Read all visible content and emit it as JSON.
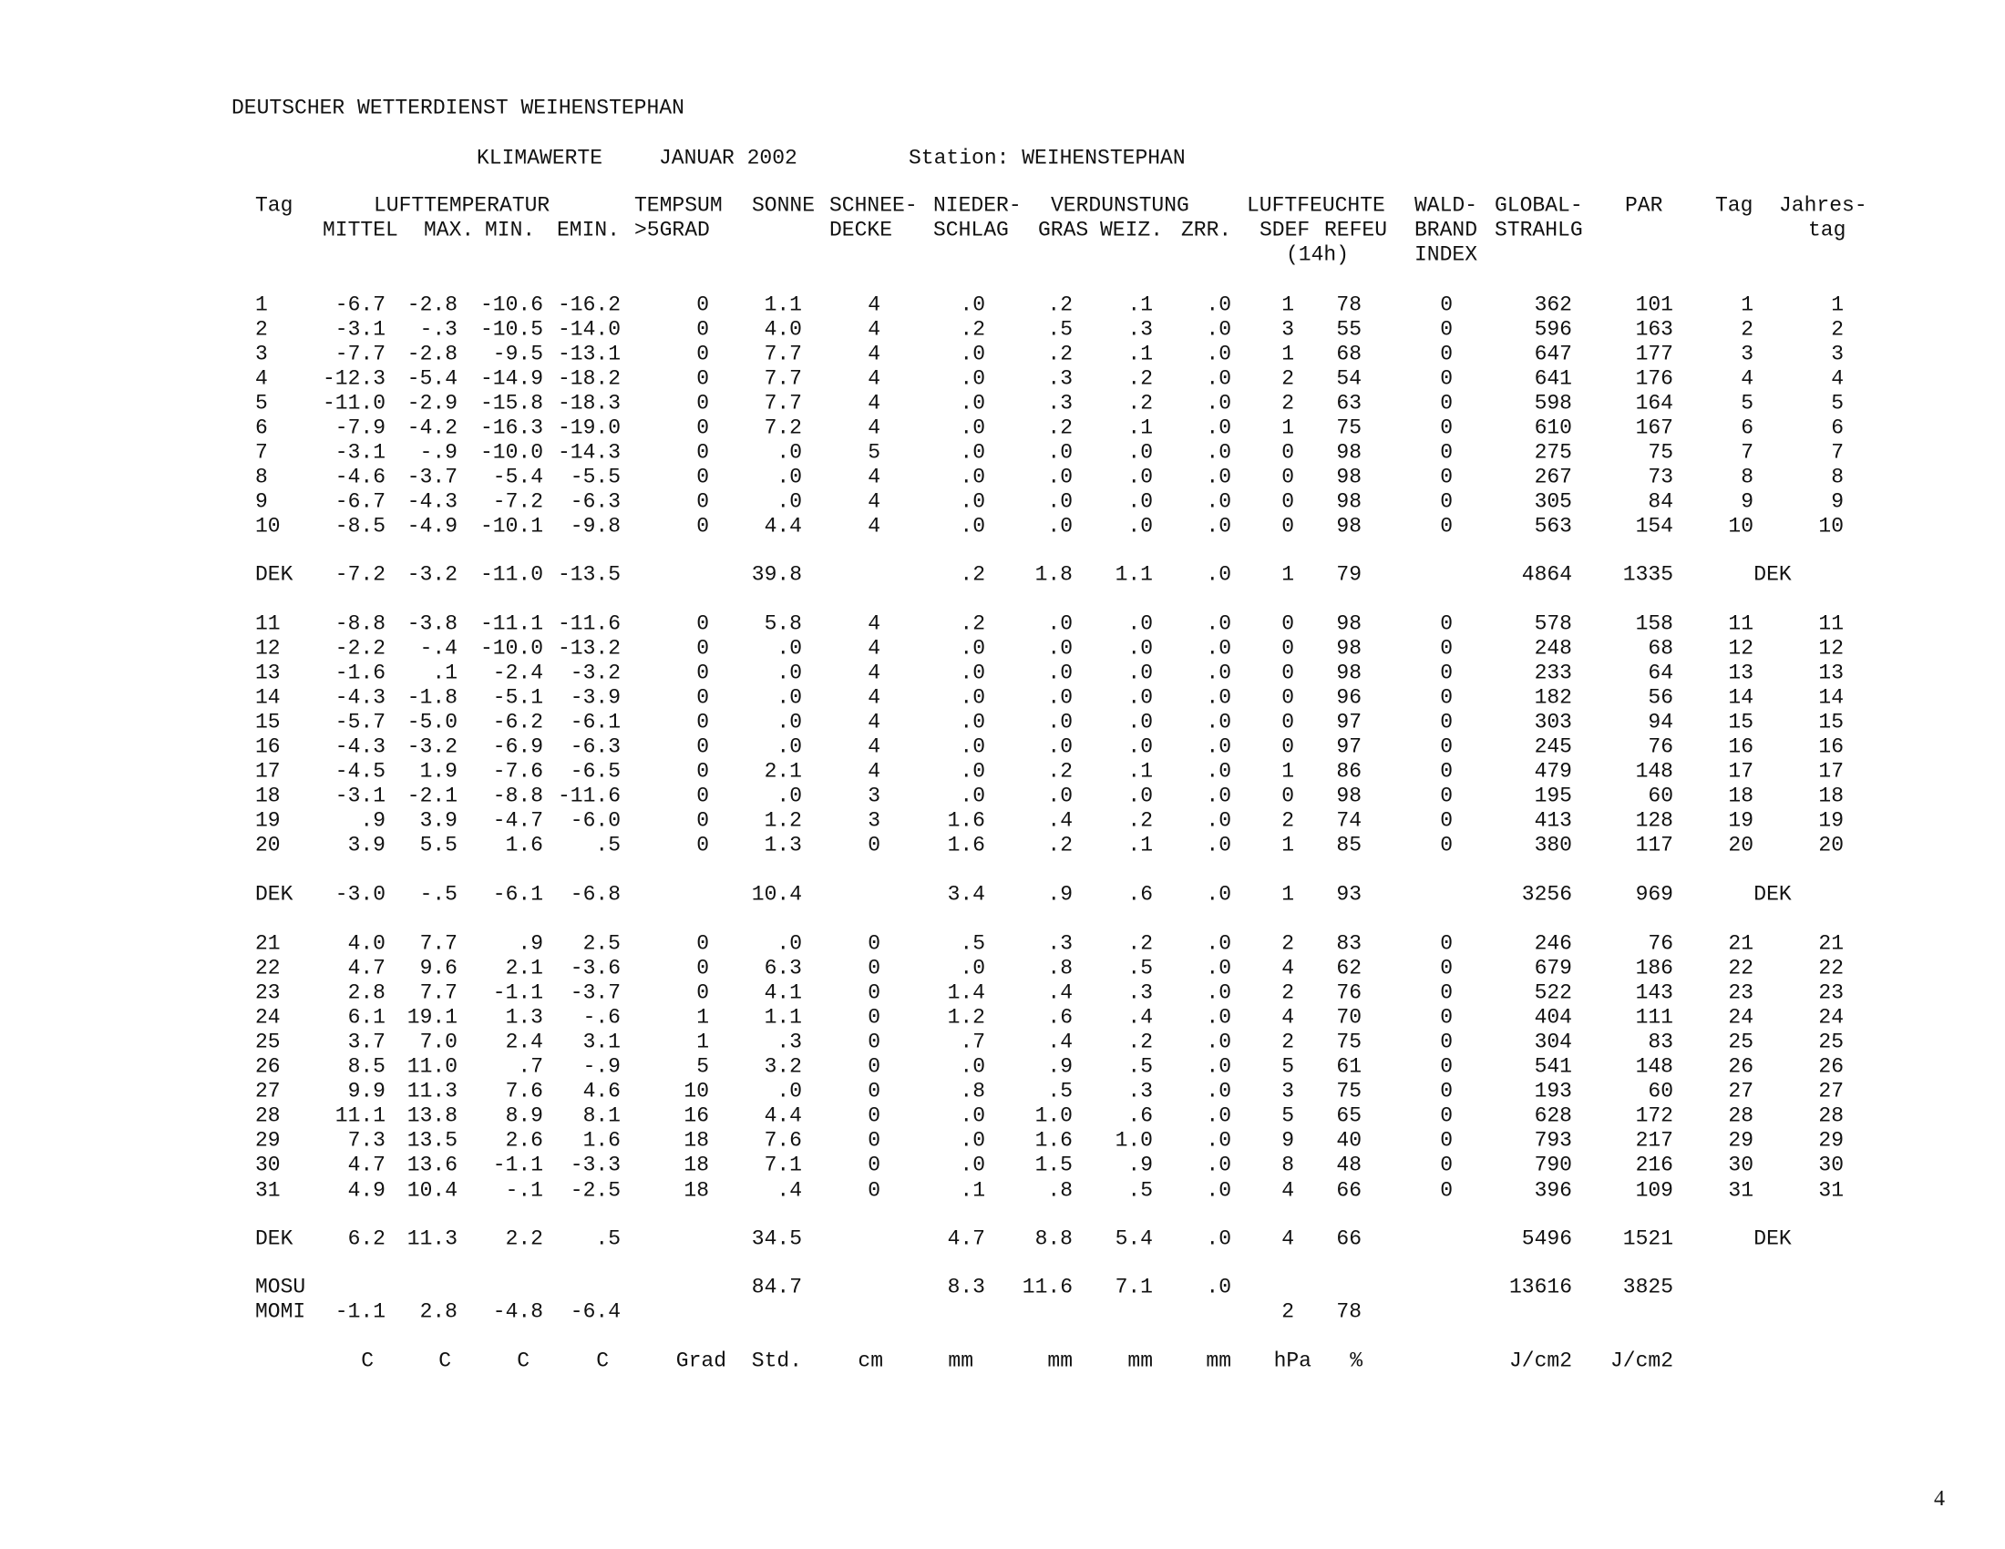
{
  "header": {
    "org": "DEUTSCHER WETTERDIENST WEIHENSTEPHAN",
    "subtitle": "KLIMAWERTE",
    "month": "JANUAR 2002",
    "station": "Station: WEIHENSTEPHAN"
  },
  "column_headers": {
    "line1": [
      "Tag",
      "LUFTTEMPERATUR",
      "TEMPSUM",
      "SONNE",
      "SCHNEE-",
      "NIEDER-",
      "VERDUNSTUNG",
      "LUFTFEUCHTE",
      "WALD-",
      "GLOBAL-",
      "PAR",
      "Tag",
      "Jahres-"
    ],
    "line2": [
      "MITTEL",
      "MAX.",
      "MIN.",
      "EMIN.",
      ">5GRAD",
      "DECKE",
      "SCHLAG",
      "GRAS",
      "WEIZ.",
      "ZRR.",
      "SDEF",
      "REFEU",
      "BRAND",
      "STRAHLG",
      "tag"
    ],
    "line3": [
      "(14h)",
      "INDEX"
    ]
  },
  "blocks": [
    {
      "rows": [
        [
          "1",
          "-6.7",
          "-2.8",
          "-10.6",
          "-16.2",
          "0",
          "1.1",
          "4",
          ".0",
          ".2",
          ".1",
          ".0",
          "1",
          "78",
          "0",
          "362",
          "101",
          "1",
          "1"
        ],
        [
          "2",
          "-3.1",
          "-.3",
          "-10.5",
          "-14.0",
          "0",
          "4.0",
          "4",
          ".2",
          ".5",
          ".3",
          ".0",
          "3",
          "55",
          "0",
          "596",
          "163",
          "2",
          "2"
        ],
        [
          "3",
          "-7.7",
          "-2.8",
          "-9.5",
          "-13.1",
          "0",
          "7.7",
          "4",
          ".0",
          ".2",
          ".1",
          ".0",
          "1",
          "68",
          "0",
          "647",
          "177",
          "3",
          "3"
        ],
        [
          "4",
          "-12.3",
          "-5.4",
          "-14.9",
          "-18.2",
          "0",
          "7.7",
          "4",
          ".0",
          ".3",
          ".2",
          ".0",
          "2",
          "54",
          "0",
          "641",
          "176",
          "4",
          "4"
        ],
        [
          "5",
          "-11.0",
          "-2.9",
          "-15.8",
          "-18.3",
          "0",
          "7.7",
          "4",
          ".0",
          ".3",
          ".2",
          ".0",
          "2",
          "63",
          "0",
          "598",
          "164",
          "5",
          "5"
        ],
        [
          "6",
          "-7.9",
          "-4.2",
          "-16.3",
          "-19.0",
          "0",
          "7.2",
          "4",
          ".0",
          ".2",
          ".1",
          ".0",
          "1",
          "75",
          "0",
          "610",
          "167",
          "6",
          "6"
        ],
        [
          "7",
          "-3.1",
          "-.9",
          "-10.0",
          "-14.3",
          "0",
          ".0",
          "5",
          ".0",
          ".0",
          ".0",
          ".0",
          "0",
          "98",
          "0",
          "275",
          "75",
          "7",
          "7"
        ],
        [
          "8",
          "-4.6",
          "-3.7",
          "-5.4",
          "-5.5",
          "0",
          ".0",
          "4",
          ".0",
          ".0",
          ".0",
          ".0",
          "0",
          "98",
          "0",
          "267",
          "73",
          "8",
          "8"
        ],
        [
          "9",
          "-6.7",
          "-4.3",
          "-7.2",
          "-6.3",
          "0",
          ".0",
          "4",
          ".0",
          ".0",
          ".0",
          ".0",
          "0",
          "98",
          "0",
          "305",
          "84",
          "9",
          "9"
        ],
        [
          "10",
          "-8.5",
          "-4.9",
          "-10.1",
          "-9.8",
          "0",
          "4.4",
          "4",
          ".0",
          ".0",
          ".0",
          ".0",
          "0",
          "98",
          "0",
          "563",
          "154",
          "10",
          "10"
        ]
      ],
      "summary": [
        "DEK",
        "-7.2",
        "-3.2",
        "-11.0",
        "-13.5",
        "",
        "39.8",
        "",
        ".2",
        "1.8",
        "1.1",
        ".0",
        "1",
        "79",
        "",
        "4864",
        "1335",
        "DEK",
        ""
      ]
    },
    {
      "rows": [
        [
          "11",
          "-8.8",
          "-3.8",
          "-11.1",
          "-11.6",
          "0",
          "5.8",
          "4",
          ".2",
          ".0",
          ".0",
          ".0",
          "0",
          "98",
          "0",
          "578",
          "158",
          "11",
          "11"
        ],
        [
          "12",
          "-2.2",
          "-.4",
          "-10.0",
          "-13.2",
          "0",
          ".0",
          "4",
          ".0",
          ".0",
          ".0",
          ".0",
          "0",
          "98",
          "0",
          "248",
          "68",
          "12",
          "12"
        ],
        [
          "13",
          "-1.6",
          ".1",
          "-2.4",
          "-3.2",
          "0",
          ".0",
          "4",
          ".0",
          ".0",
          ".0",
          ".0",
          "0",
          "98",
          "0",
          "233",
          "64",
          "13",
          "13"
        ],
        [
          "14",
          "-4.3",
          "-1.8",
          "-5.1",
          "-3.9",
          "0",
          ".0",
          "4",
          ".0",
          ".0",
          ".0",
          ".0",
          "0",
          "96",
          "0",
          "182",
          "56",
          "14",
          "14"
        ],
        [
          "15",
          "-5.7",
          "-5.0",
          "-6.2",
          "-6.1",
          "0",
          ".0",
          "4",
          ".0",
          ".0",
          ".0",
          ".0",
          "0",
          "97",
          "0",
          "303",
          "94",
          "15",
          "15"
        ],
        [
          "16",
          "-4.3",
          "-3.2",
          "-6.9",
          "-6.3",
          "0",
          ".0",
          "4",
          ".0",
          ".0",
          ".0",
          ".0",
          "0",
          "97",
          "0",
          "245",
          "76",
          "16",
          "16"
        ],
        [
          "17",
          "-4.5",
          "1.9",
          "-7.6",
          "-6.5",
          "0",
          "2.1",
          "4",
          ".0",
          ".2",
          ".1",
          ".0",
          "1",
          "86",
          "0",
          "479",
          "148",
          "17",
          "17"
        ],
        [
          "18",
          "-3.1",
          "-2.1",
          "-8.8",
          "-11.6",
          "0",
          ".0",
          "3",
          ".0",
          ".0",
          ".0",
          ".0",
          "0",
          "98",
          "0",
          "195",
          "60",
          "18",
          "18"
        ],
        [
          "19",
          ".9",
          "3.9",
          "-4.7",
          "-6.0",
          "0",
          "1.2",
          "3",
          "1.6",
          ".4",
          ".2",
          ".0",
          "2",
          "74",
          "0",
          "413",
          "128",
          "19",
          "19"
        ],
        [
          "20",
          "3.9",
          "5.5",
          "1.6",
          ".5",
          "0",
          "1.3",
          "0",
          "1.6",
          ".2",
          ".1",
          ".0",
          "1",
          "85",
          "0",
          "380",
          "117",
          "20",
          "20"
        ]
      ],
      "summary": [
        "DEK",
        "-3.0",
        "-.5",
        "-6.1",
        "-6.8",
        "",
        "10.4",
        "",
        "3.4",
        ".9",
        ".6",
        ".0",
        "1",
        "93",
        "",
        "3256",
        "969",
        "DEK",
        ""
      ]
    },
    {
      "rows": [
        [
          "21",
          "4.0",
          "7.7",
          ".9",
          "2.5",
          "0",
          ".0",
          "0",
          ".5",
          ".3",
          ".2",
          ".0",
          "2",
          "83",
          "0",
          "246",
          "76",
          "21",
          "21"
        ],
        [
          "22",
          "4.7",
          "9.6",
          "2.1",
          "-3.6",
          "0",
          "6.3",
          "0",
          ".0",
          ".8",
          ".5",
          ".0",
          "4",
          "62",
          "0",
          "679",
          "186",
          "22",
          "22"
        ],
        [
          "23",
          "2.8",
          "7.7",
          "-1.1",
          "-3.7",
          "0",
          "4.1",
          "0",
          "1.4",
          ".4",
          ".3",
          ".0",
          "2",
          "76",
          "0",
          "522",
          "143",
          "23",
          "23"
        ],
        [
          "24",
          "6.1",
          "19.1",
          "1.3",
          "-.6",
          "1",
          "1.1",
          "0",
          "1.2",
          ".6",
          ".4",
          ".0",
          "4",
          "70",
          "0",
          "404",
          "111",
          "24",
          "24"
        ],
        [
          "25",
          "3.7",
          "7.0",
          "2.4",
          "3.1",
          "1",
          ".3",
          "0",
          ".7",
          ".4",
          ".2",
          ".0",
          "2",
          "75",
          "0",
          "304",
          "83",
          "25",
          "25"
        ],
        [
          "26",
          "8.5",
          "11.0",
          ".7",
          "-.9",
          "5",
          "3.2",
          "0",
          ".0",
          ".9",
          ".5",
          ".0",
          "5",
          "61",
          "0",
          "541",
          "148",
          "26",
          "26"
        ],
        [
          "27",
          "9.9",
          "11.3",
          "7.6",
          "4.6",
          "10",
          ".0",
          "0",
          ".8",
          ".5",
          ".3",
          ".0",
          "3",
          "75",
          "0",
          "193",
          "60",
          "27",
          "27"
        ],
        [
          "28",
          "11.1",
          "13.8",
          "8.9",
          "8.1",
          "16",
          "4.4",
          "0",
          ".0",
          "1.0",
          ".6",
          ".0",
          "5",
          "65",
          "0",
          "628",
          "172",
          "28",
          "28"
        ],
        [
          "29",
          "7.3",
          "13.5",
          "2.6",
          "1.6",
          "18",
          "7.6",
          "0",
          ".0",
          "1.6",
          "1.0",
          ".0",
          "9",
          "40",
          "0",
          "793",
          "217",
          "29",
          "29"
        ],
        [
          "30",
          "4.7",
          "13.6",
          "-1.1",
          "-3.3",
          "18",
          "7.1",
          "0",
          ".0",
          "1.5",
          ".9",
          ".0",
          "8",
          "48",
          "0",
          "790",
          "216",
          "30",
          "30"
        ],
        [
          "31",
          "4.9",
          "10.4",
          "-.1",
          "-2.5",
          "18",
          ".4",
          "0",
          ".1",
          ".8",
          ".5",
          ".0",
          "4",
          "66",
          "0",
          "396",
          "109",
          "31",
          "31"
        ]
      ],
      "summary": [
        "DEK",
        "6.2",
        "11.3",
        "2.2",
        ".5",
        "",
        "34.5",
        "",
        "4.7",
        "8.8",
        "5.4",
        ".0",
        "4",
        "66",
        "",
        "5496",
        "1521",
        "DEK",
        ""
      ]
    }
  ],
  "month_rows": [
    [
      "MOSU",
      "",
      "",
      "",
      "",
      "",
      "84.7",
      "",
      "8.3",
      "11.6",
      "7.1",
      ".0",
      "",
      "",
      "",
      "13616",
      "3825",
      "",
      ""
    ],
    [
      "MOMI",
      "-1.1",
      "2.8",
      "-4.8",
      "-6.4",
      "",
      "",
      "",
      "",
      "",
      "",
      "",
      "2",
      "78",
      "",
      "",
      "",
      "",
      ""
    ]
  ],
  "units": [
    "C",
    "C",
    "C",
    "C",
    "Grad",
    "Std.",
    "cm",
    "mm",
    "mm",
    "mm",
    "mm",
    "hPa",
    "%",
    "J/cm2",
    "J/cm2"
  ],
  "page_number": "4"
}
